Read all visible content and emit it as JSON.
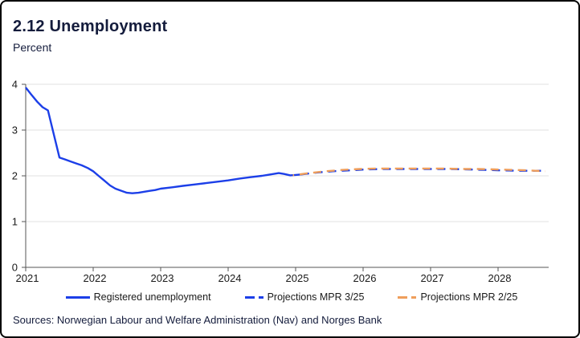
{
  "header": {
    "title": "2.12 Unemployment",
    "subtitle": "Percent"
  },
  "footer": {
    "sources": "Sources: Norwegian Labour and Welfare Administration (Nav) and Norges Bank"
  },
  "colors": {
    "primary_blue": "#1C3FE8",
    "projection_orange": "#EF9E5B",
    "title_navy": "#141C3C",
    "grid": "#E2E2E2",
    "axis": "#555555"
  },
  "legend": [
    {
      "label": "Registered unemployment",
      "style": "solid",
      "color_key": "primary_blue"
    },
    {
      "label": "Projections MPR 3/25",
      "style": "dashed",
      "color_key": "primary_blue"
    },
    {
      "label": "Projections MPR 2/25",
      "style": "dashed",
      "color_key": "projection_orange"
    }
  ],
  "chart_data": {
    "type": "line",
    "title": "2.12 Unemployment",
    "xlabel": "",
    "ylabel": "Percent",
    "xlim": [
      2021,
      2028.75
    ],
    "ylim": [
      0,
      4
    ],
    "xticks": [
      2021,
      2022,
      2023,
      2024,
      2025,
      2026,
      2027,
      2028
    ],
    "yticks": [
      0,
      1,
      2,
      3,
      4
    ],
    "grid": true,
    "legend_position": "bottom",
    "series": [
      {
        "name": "Registered unemployment",
        "style": "solid",
        "color_key": "primary_blue",
        "points": [
          [
            2021.0,
            3.93
          ],
          [
            2021.08,
            3.78
          ],
          [
            2021.17,
            3.62
          ],
          [
            2021.25,
            3.5
          ],
          [
            2021.33,
            3.43
          ],
          [
            2021.5,
            2.4
          ],
          [
            2021.58,
            2.36
          ],
          [
            2021.67,
            2.31
          ],
          [
            2021.75,
            2.27
          ],
          [
            2021.83,
            2.23
          ],
          [
            2021.92,
            2.17
          ],
          [
            2022.0,
            2.1
          ],
          [
            2022.08,
            2.0
          ],
          [
            2022.17,
            1.89
          ],
          [
            2022.25,
            1.79
          ],
          [
            2022.33,
            1.72
          ],
          [
            2022.42,
            1.67
          ],
          [
            2022.5,
            1.63
          ],
          [
            2022.58,
            1.62
          ],
          [
            2022.67,
            1.63
          ],
          [
            2022.75,
            1.65
          ],
          [
            2022.83,
            1.67
          ],
          [
            2022.92,
            1.69
          ],
          [
            2023.0,
            1.72
          ],
          [
            2023.17,
            1.75
          ],
          [
            2023.33,
            1.78
          ],
          [
            2023.5,
            1.81
          ],
          [
            2023.67,
            1.84
          ],
          [
            2023.83,
            1.87
          ],
          [
            2024.0,
            1.9
          ],
          [
            2024.17,
            1.94
          ],
          [
            2024.33,
            1.97
          ],
          [
            2024.5,
            2.0
          ],
          [
            2024.58,
            2.02
          ],
          [
            2024.67,
            2.04
          ],
          [
            2024.75,
            2.06
          ],
          [
            2024.83,
            2.04
          ],
          [
            2024.92,
            2.01
          ],
          [
            2025.0,
            2.02
          ],
          [
            2025.08,
            2.03
          ]
        ]
      },
      {
        "name": "Projections MPR 3/25",
        "style": "dashed",
        "color_key": "primary_blue",
        "points": [
          [
            2025.08,
            2.03
          ],
          [
            2025.3,
            2.07
          ],
          [
            2025.55,
            2.1
          ],
          [
            2025.8,
            2.12
          ],
          [
            2026.05,
            2.14
          ],
          [
            2026.3,
            2.15
          ],
          [
            2026.55,
            2.15
          ],
          [
            2026.8,
            2.15
          ],
          [
            2027.05,
            2.15
          ],
          [
            2027.3,
            2.15
          ],
          [
            2027.55,
            2.14
          ],
          [
            2027.8,
            2.13
          ],
          [
            2028.05,
            2.12
          ],
          [
            2028.3,
            2.11
          ],
          [
            2028.55,
            2.11
          ],
          [
            2028.7,
            2.11
          ]
        ]
      },
      {
        "name": "Projections MPR 2/25",
        "style": "dashed",
        "color_key": "projection_orange",
        "points": [
          [
            2024.96,
            2.01
          ],
          [
            2025.2,
            2.06
          ],
          [
            2025.45,
            2.1
          ],
          [
            2025.7,
            2.13
          ],
          [
            2025.95,
            2.15
          ],
          [
            2026.2,
            2.16
          ],
          [
            2026.45,
            2.16
          ],
          [
            2026.7,
            2.16
          ],
          [
            2026.95,
            2.16
          ],
          [
            2027.2,
            2.16
          ],
          [
            2027.45,
            2.15
          ],
          [
            2027.7,
            2.15
          ],
          [
            2027.95,
            2.14
          ],
          [
            2028.2,
            2.13
          ],
          [
            2028.45,
            2.12
          ],
          [
            2028.7,
            2.1
          ]
        ]
      }
    ]
  }
}
